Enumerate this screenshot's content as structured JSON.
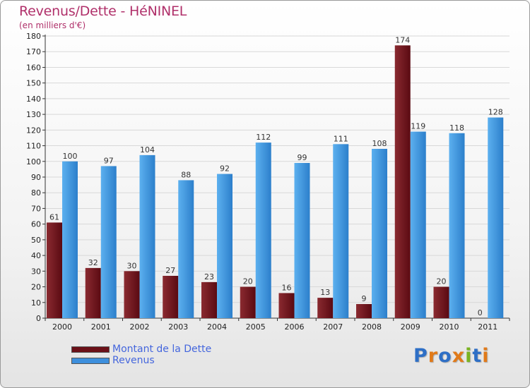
{
  "title": "Revenus/Dette - HéNINEL",
  "subtitle": "(en milliers d'€)",
  "legend": [
    {
      "label": "Montant de la Dette",
      "color": "#6b1018"
    },
    {
      "label": "Revenus",
      "color": "#3d8fdd"
    }
  ],
  "logo": "Proxiti",
  "colors": {
    "dette_top": "#8a2a30",
    "dette_bottom": "#5a0a12",
    "revenus_top": "#5cb0ef",
    "revenus_bottom": "#2c7fcb",
    "grid": "#d8d8d8",
    "logo_letters": [
      "#2e6fc6",
      "#e07a1a",
      "#2e6fc6",
      "#e07a1a",
      "#7ab320",
      "#2e6fc6",
      "#e07a1a"
    ]
  },
  "chart_data": {
    "type": "bar",
    "title": "Revenus/Dette - HéNINEL",
    "subtitle": "(en milliers d'€)",
    "categories": [
      "2000",
      "2001",
      "2002",
      "2003",
      "2004",
      "2005",
      "2006",
      "2007",
      "2008",
      "2009",
      "2010",
      "2011"
    ],
    "series": [
      {
        "name": "Montant de la Dette",
        "values": [
          61,
          32,
          30,
          27,
          23,
          20,
          16,
          13,
          9,
          174,
          20,
          0
        ]
      },
      {
        "name": "Revenus",
        "values": [
          100,
          97,
          104,
          88,
          92,
          112,
          99,
          111,
          108,
          119,
          118,
          128
        ]
      }
    ],
    "ylim": [
      0,
      180
    ],
    "yticks": [
      0,
      10,
      20,
      30,
      40,
      50,
      60,
      70,
      80,
      90,
      100,
      110,
      120,
      130,
      140,
      150,
      160,
      170,
      180
    ],
    "grid": true,
    "legend_position": "bottom-left"
  }
}
